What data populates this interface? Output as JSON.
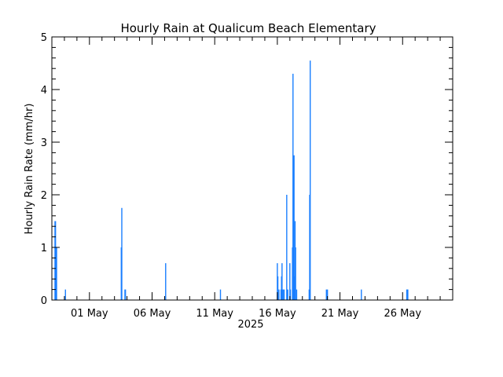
{
  "chart_data": {
    "type": "bar",
    "title": "Hourly Rain at Qualicum Beach Elementary",
    "xlabel": "2025",
    "ylabel": "Hourly Rain Rate (mm/hr)",
    "ylim": [
      0,
      5
    ],
    "yticks": [
      0,
      1,
      2,
      3,
      4,
      5
    ],
    "xlim": [
      "2025-04-28 00:00",
      "2025-05-30 00:00"
    ],
    "xticks": [
      {
        "date": "2025-05-01",
        "label": "01 May"
      },
      {
        "date": "2025-05-06",
        "label": "06 May"
      },
      {
        "date": "2025-05-11",
        "label": "11 May"
      },
      {
        "date": "2025-05-16",
        "label": "16 May"
      },
      {
        "date": "2025-05-21",
        "label": "21 May"
      },
      {
        "date": "2025-05-26",
        "label": "26 May"
      }
    ],
    "grid": false,
    "bar_color": "#1a7fff",
    "series": [
      {
        "values": [
          {
            "t": "2025-04-28 06:00",
            "y": 1.5
          },
          {
            "t": "2025-04-28 07:00",
            "y": 1.5
          },
          {
            "t": "2025-04-28 08:00",
            "y": 1.0
          },
          {
            "t": "2025-04-28 09:00",
            "y": 1.0
          },
          {
            "t": "2025-04-29 02:00",
            "y": 0.2
          },
          {
            "t": "2025-05-03 13:00",
            "y": 1.0
          },
          {
            "t": "2025-05-03 14:00",
            "y": 1.75
          },
          {
            "t": "2025-05-03 20:00",
            "y": 0.2
          },
          {
            "t": "2025-05-03 21:00",
            "y": 0.2
          },
          {
            "t": "2025-05-07 02:00",
            "y": 0.7
          },
          {
            "t": "2025-05-11 11:00",
            "y": 0.2
          },
          {
            "t": "2025-05-16 00:00",
            "y": 0.7
          },
          {
            "t": "2025-05-16 01:00",
            "y": 0.45
          },
          {
            "t": "2025-05-16 03:00",
            "y": 0.2
          },
          {
            "t": "2025-05-16 07:00",
            "y": 0.2
          },
          {
            "t": "2025-05-16 08:00",
            "y": 0.45
          },
          {
            "t": "2025-05-16 09:00",
            "y": 0.7
          },
          {
            "t": "2025-05-16 11:00",
            "y": 0.2
          },
          {
            "t": "2025-05-16 13:00",
            "y": 0.2
          },
          {
            "t": "2025-05-16 18:00",
            "y": 2.0
          },
          {
            "t": "2025-05-16 20:00",
            "y": 0.2
          },
          {
            "t": "2025-05-17 00:00",
            "y": 0.7
          },
          {
            "t": "2025-05-17 01:00",
            "y": 0.2
          },
          {
            "t": "2025-05-17 05:00",
            "y": 1.0
          },
          {
            "t": "2025-05-17 06:00",
            "y": 4.3
          },
          {
            "t": "2025-05-17 07:00",
            "y": 2.0
          },
          {
            "t": "2025-05-17 08:00",
            "y": 2.75
          },
          {
            "t": "2025-05-17 09:00",
            "y": 0.45
          },
          {
            "t": "2025-05-17 10:00",
            "y": 1.5
          },
          {
            "t": "2025-05-17 11:00",
            "y": 1.0
          },
          {
            "t": "2025-05-17 13:00",
            "y": 0.2
          },
          {
            "t": "2025-05-18 13:00",
            "y": 0.2
          },
          {
            "t": "2025-05-18 14:00",
            "y": 2.0
          },
          {
            "t": "2025-05-18 15:00",
            "y": 4.55
          },
          {
            "t": "2025-05-19 22:00",
            "y": 0.2
          },
          {
            "t": "2025-05-20 00:00",
            "y": 0.2
          },
          {
            "t": "2025-05-22 17:00",
            "y": 0.2
          },
          {
            "t": "2025-05-26 08:00",
            "y": 0.2
          },
          {
            "t": "2025-05-26 09:00",
            "y": 0.2
          },
          {
            "t": "2025-05-26 10:00",
            "y": 0.2
          }
        ]
      }
    ]
  }
}
